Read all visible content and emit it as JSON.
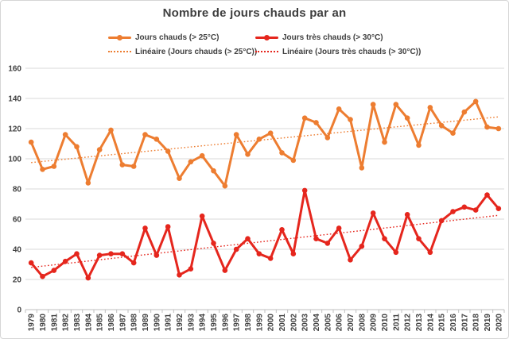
{
  "chart_data": {
    "type": "line",
    "title": "Nombre de jours chauds par an",
    "categories": [
      "1979",
      "1980",
      "1981",
      "1982",
      "1983",
      "1984",
      "1985",
      "1986",
      "1987",
      "1988",
      "1989",
      "1990",
      "1991",
      "1992",
      "1993",
      "1994",
      "1995",
      "1996",
      "1997",
      "1998",
      "1999",
      "2000",
      "2001",
      "2002",
      "2003",
      "2004",
      "2005",
      "2006",
      "2007",
      "2008",
      "2009",
      "2010",
      "2011",
      "2012",
      "2013",
      "2014",
      "2015",
      "2016",
      "2017",
      "2018",
      "2019",
      "2020"
    ],
    "ylim": [
      0,
      160
    ],
    "y_ticks": [
      0,
      20,
      40,
      60,
      80,
      100,
      120,
      140,
      160
    ],
    "grid": true,
    "legend_position": "top",
    "series": [
      {
        "name": "Jours chauds (> 25°C)",
        "color": "#ED7D31",
        "values": [
          111,
          93,
          95,
          116,
          108,
          84,
          106,
          119,
          96,
          95,
          116,
          113,
          105,
          87,
          98,
          102,
          92,
          82,
          116,
          103,
          113,
          117,
          104,
          99,
          127,
          124,
          114,
          133,
          126,
          94,
          136,
          111,
          136,
          127,
          109,
          134,
          122,
          117,
          131,
          138,
          121,
          120
        ]
      },
      {
        "name": "Jours très chauds (> 30°C)",
        "color": "#E5261D",
        "values": [
          31,
          22,
          26,
          32,
          37,
          21,
          36,
          37,
          37,
          31,
          54,
          36,
          55,
          23,
          27,
          62,
          44,
          26,
          40,
          47,
          37,
          34,
          53,
          37,
          79,
          47,
          44,
          54,
          33,
          42,
          64,
          47,
          38,
          63,
          47,
          38,
          59,
          65,
          68,
          66,
          76,
          67
        ]
      }
    ],
    "trendlines": [
      {
        "name": "Linéaire (Jours chauds (> 25°C))",
        "color": "#ED7D31",
        "start": 97.5,
        "end": 127.8
      },
      {
        "name": "Linéaire (Jours très chauds (> 30°C))",
        "color": "#E5261D",
        "start": 28,
        "end": 62.5
      }
    ],
    "axis_colors": {
      "gridline": "#D9D9D9",
      "axis_line": "#BFBFBF",
      "tick": "#BFBFBF",
      "label": "#404040"
    }
  }
}
